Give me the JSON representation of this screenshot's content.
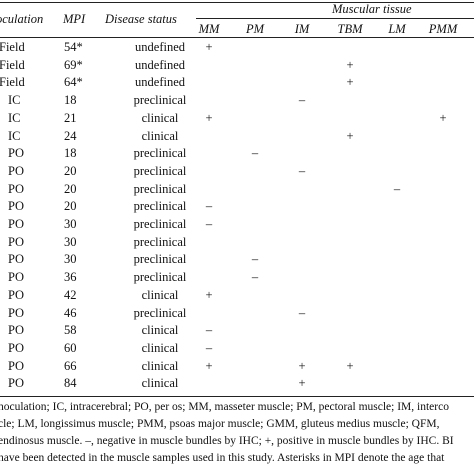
{
  "headers": {
    "inoculation": "oculation",
    "mpi": "MPI",
    "disease_status": "Disease status",
    "muscular_tissue": "Muscular tissue",
    "muscles": [
      "MM",
      "PM",
      "IM",
      "TBM",
      "LM",
      "PMM"
    ]
  },
  "rows": [
    {
      "inoculation": "Field",
      "mpi": "54*",
      "status": "undefined",
      "marks": [
        "+",
        "",
        "",
        "",
        "",
        ""
      ]
    },
    {
      "inoculation": "Field",
      "mpi": "69*",
      "status": "undefined",
      "marks": [
        "",
        "",
        "",
        "+",
        "",
        ""
      ]
    },
    {
      "inoculation": "Field",
      "mpi": "64*",
      "status": "undefined",
      "marks": [
        "",
        "",
        "",
        "+",
        "",
        ""
      ]
    },
    {
      "inoculation": "IC",
      "mpi": "18",
      "status": "preclinical",
      "marks": [
        "",
        "",
        "–",
        "",
        "",
        ""
      ]
    },
    {
      "inoculation": "IC",
      "mpi": "21",
      "status": "clinical",
      "marks": [
        "+",
        "",
        "",
        "",
        "",
        "+"
      ]
    },
    {
      "inoculation": "IC",
      "mpi": "24",
      "status": "clinical",
      "marks": [
        "",
        "",
        "",
        "+",
        "",
        ""
      ]
    },
    {
      "inoculation": "PO",
      "mpi": "18",
      "status": "preclinical",
      "marks": [
        "",
        "–",
        "",
        "",
        "",
        ""
      ]
    },
    {
      "inoculation": "PO",
      "mpi": "20",
      "status": "preclinical",
      "marks": [
        "",
        "",
        "–",
        "",
        "",
        ""
      ]
    },
    {
      "inoculation": "PO",
      "mpi": "20",
      "status": "preclinical",
      "marks": [
        "",
        "",
        "",
        "",
        "–",
        ""
      ]
    },
    {
      "inoculation": "PO",
      "mpi": "20",
      "status": "preclinical",
      "marks": [
        "–",
        "",
        "",
        "",
        "",
        ""
      ]
    },
    {
      "inoculation": "PO",
      "mpi": "30",
      "status": "preclinical",
      "marks": [
        "–",
        "",
        "",
        "",
        "",
        ""
      ]
    },
    {
      "inoculation": "PO",
      "mpi": "30",
      "status": "preclinical",
      "marks": [
        "",
        "",
        "",
        "",
        "",
        ""
      ]
    },
    {
      "inoculation": "PO",
      "mpi": "30",
      "status": "preclinical",
      "marks": [
        "",
        "–",
        "",
        "",
        "",
        ""
      ]
    },
    {
      "inoculation": "PO",
      "mpi": "36",
      "status": "preclinical",
      "marks": [
        "",
        "–",
        "",
        "",
        "",
        ""
      ]
    },
    {
      "inoculation": "PO",
      "mpi": "42",
      "status": "clinical",
      "marks": [
        "+",
        "",
        "",
        "",
        "",
        ""
      ]
    },
    {
      "inoculation": "PO",
      "mpi": "46",
      "status": "preclinical",
      "marks": [
        "",
        "",
        "–",
        "",
        "",
        ""
      ]
    },
    {
      "inoculation": "PO",
      "mpi": "58",
      "status": "clinical",
      "marks": [
        "–",
        "",
        "",
        "",
        "",
        ""
      ]
    },
    {
      "inoculation": "PO",
      "mpi": "60",
      "status": "clinical",
      "marks": [
        "–",
        "",
        "",
        "",
        "",
        ""
      ]
    },
    {
      "inoculation": "PO",
      "mpi": "66",
      "status": "clinical",
      "marks": [
        "+",
        "",
        "+",
        "+",
        "",
        ""
      ]
    },
    {
      "inoculation": "PO",
      "mpi": "84",
      "status": "clinical",
      "marks": [
        "",
        "",
        "+",
        "",
        "",
        ""
      ]
    }
  ],
  "footnotes": [
    "noculation; IC, intracerebral; PO, per os; MM, masseter muscle; PM, pectoral muscle; IM, interco",
    "cle; LM, longissimus muscle; PMM, psoas major muscle; GMM, gluteus medius muscle; QFM,",
    "endinosus muscle. –, negative in muscle bundles by IHC; +, positive in muscle bundles by IHC. BI",
    "have been detected in the muscle samples used in this study. Asterisks in MPI denote the age that"
  ]
}
